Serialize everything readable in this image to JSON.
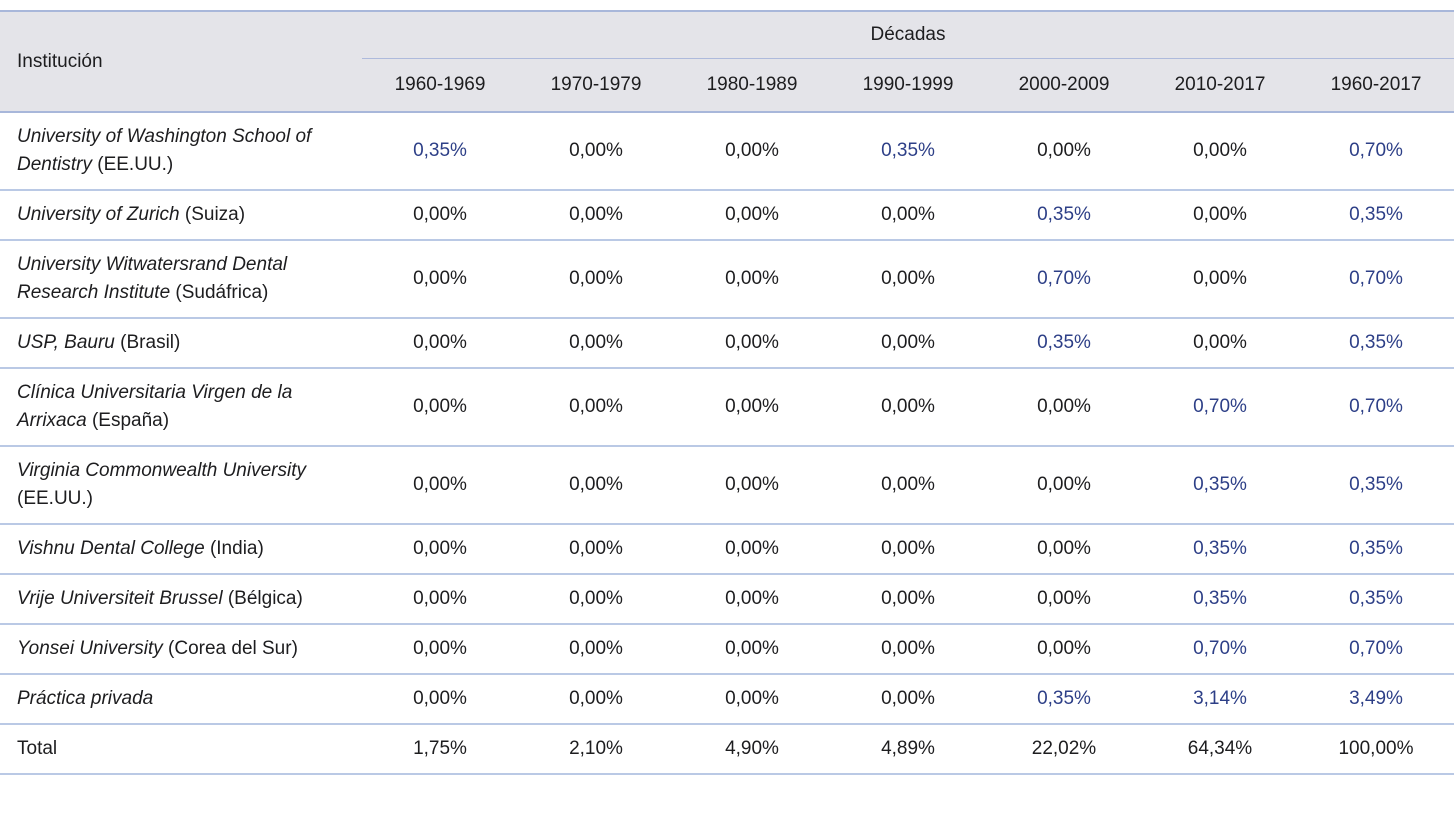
{
  "table": {
    "institution_header": "Institución",
    "group_header": "Décadas",
    "columns": [
      "1960-1969",
      "1970-1979",
      "1980-1989",
      "1990-1999",
      "2000-2009",
      "2010-2017",
      "1960-2017"
    ],
    "rows": [
      {
        "name": "University of Washington School of Dentistry",
        "country": "(EE.UU.)",
        "values": [
          "0,35%",
          "0,00%",
          "0,00%",
          "0,35%",
          "0,00%",
          "0,00%",
          "0,70%"
        ],
        "highlight": [
          true,
          false,
          false,
          true,
          false,
          false,
          true
        ]
      },
      {
        "name": "University of Zurich",
        "country": "(Suiza)",
        "values": [
          "0,00%",
          "0,00%",
          "0,00%",
          "0,00%",
          "0,35%",
          "0,00%",
          "0,35%"
        ],
        "highlight": [
          false,
          false,
          false,
          false,
          true,
          false,
          true
        ]
      },
      {
        "name": "University Witwatersrand Dental Research Institute",
        "country": "(Sudáfrica)",
        "values": [
          "0,00%",
          "0,00%",
          "0,00%",
          "0,00%",
          "0,70%",
          "0,00%",
          "0,70%"
        ],
        "highlight": [
          false,
          false,
          false,
          false,
          true,
          false,
          true
        ]
      },
      {
        "name": "USP, Bauru",
        "country": "(Brasil)",
        "values": [
          "0,00%",
          "0,00%",
          "0,00%",
          "0,00%",
          "0,35%",
          "0,00%",
          "0,35%"
        ],
        "highlight": [
          false,
          false,
          false,
          false,
          true,
          false,
          true
        ]
      },
      {
        "name": "Clínica  Universitaria Virgen de la Arrixaca",
        "country": "(España)",
        "values": [
          "0,00%",
          "0,00%",
          "0,00%",
          "0,00%",
          "0,00%",
          "0,70%",
          "0,70%"
        ],
        "highlight": [
          false,
          false,
          false,
          false,
          false,
          true,
          true
        ]
      },
      {
        "name": "Virginia Commonwealth University",
        "country": "(EE.UU.)",
        "values": [
          "0,00%",
          "0,00%",
          "0,00%",
          "0,00%",
          "0,00%",
          "0,35%",
          "0,35%"
        ],
        "highlight": [
          false,
          false,
          false,
          false,
          false,
          true,
          true
        ]
      },
      {
        "name": "Vishnu Dental College",
        "country": "(India)",
        "values": [
          "0,00%",
          "0,00%",
          "0,00%",
          "0,00%",
          "0,00%",
          "0,35%",
          "0,35%"
        ],
        "highlight": [
          false,
          false,
          false,
          false,
          false,
          true,
          true
        ]
      },
      {
        "name": "Vrije Universiteit Brussel",
        "country": "(Bélgica)",
        "values": [
          "0,00%",
          "0,00%",
          "0,00%",
          "0,00%",
          "0,00%",
          "0,35%",
          "0,35%"
        ],
        "highlight": [
          false,
          false,
          false,
          false,
          false,
          true,
          true
        ]
      },
      {
        "name": "Yonsei University",
        "country": "(Corea del Sur)",
        "values": [
          "0,00%",
          "0,00%",
          "0,00%",
          "0,00%",
          "0,00%",
          "0,70%",
          "0,70%"
        ],
        "highlight": [
          false,
          false,
          false,
          false,
          false,
          true,
          true
        ]
      },
      {
        "name": "Práctica privada",
        "country": "",
        "values": [
          "0,00%",
          "0,00%",
          "0,00%",
          "0,00%",
          "0,35%",
          "3,14%",
          "3,49%"
        ],
        "highlight": [
          false,
          false,
          false,
          false,
          true,
          true,
          true
        ]
      },
      {
        "name": "Total",
        "country": "",
        "is_total": true,
        "values": [
          "1,75%",
          "2,10%",
          "4,90%",
          "4,89%",
          "22,02%",
          "64,34%",
          "100,00%"
        ],
        "highlight": [
          false,
          false,
          false,
          false,
          false,
          false,
          false
        ]
      }
    ],
    "colors": {
      "accent_text": "#2d3f87",
      "header_bg": "#e4e4e9",
      "header_border": "#a8b7da",
      "row_border": "#bac9e5"
    }
  }
}
